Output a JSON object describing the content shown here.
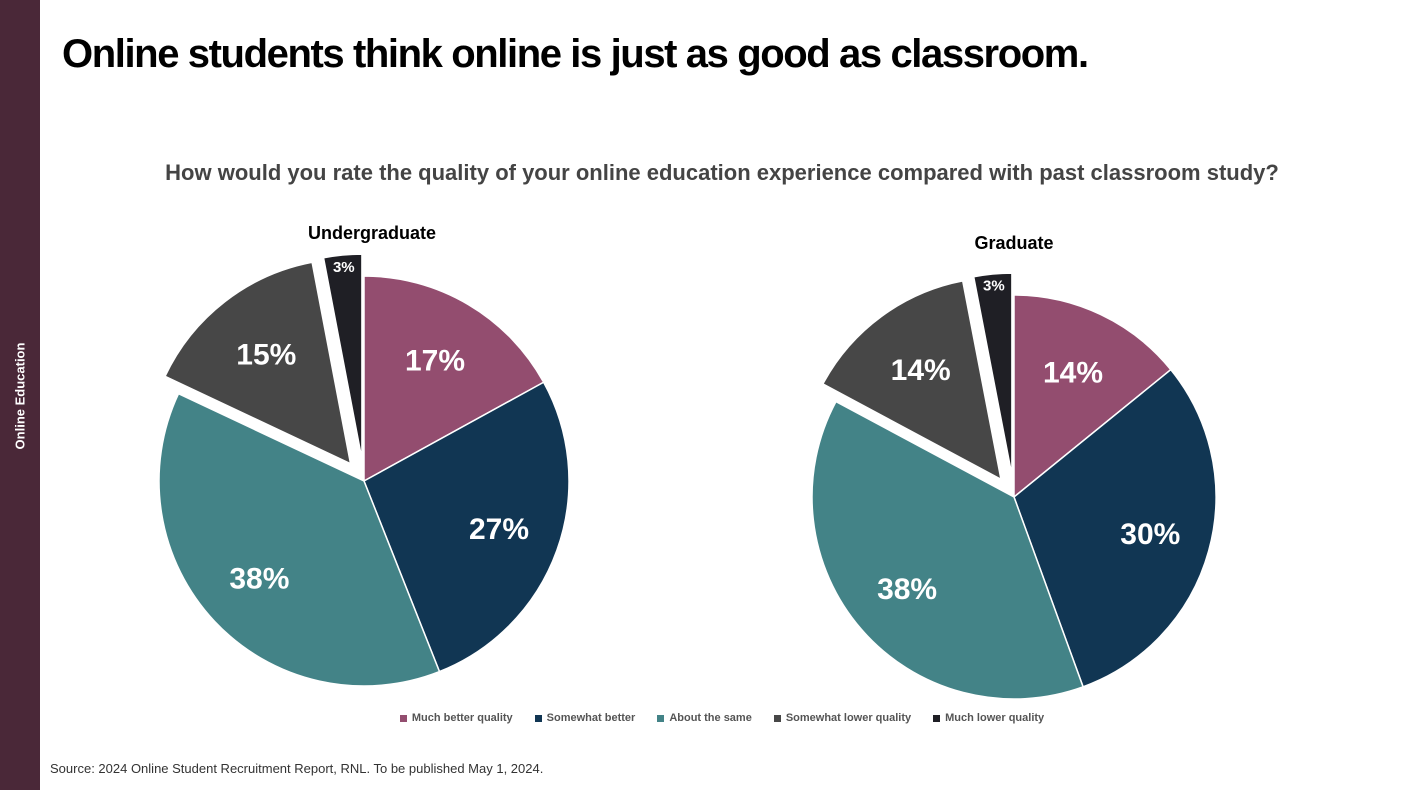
{
  "sidebar": {
    "label": "Online Education"
  },
  "slide": {
    "title": "Online students think online is just as good as classroom.",
    "question": "How would you rate the quality of your online education experience compared with past classroom study?",
    "source": "Source: 2024 Online Student Recruitment Report, RNL. To be published May 1, 2024."
  },
  "chart_data": [
    {
      "type": "pie",
      "title": "Undergraduate",
      "categories": [
        "Much better quality",
        "Somewhat better",
        "About the same",
        "Somewhat lower quality",
        "Much lower quality"
      ],
      "values": [
        17,
        27,
        38,
        15,
        3
      ],
      "labels": [
        "17%",
        "27%",
        "38%",
        "15%",
        "3%"
      ],
      "exploded": [
        "Somewhat lower quality",
        "Much lower quality"
      ],
      "legend": "bottom"
    },
    {
      "type": "pie",
      "title": "Graduate",
      "categories": [
        "Much better quality",
        "Somewhat better",
        "About the same",
        "Somewhat lower quality",
        "Much lower quality"
      ],
      "values": [
        14,
        30,
        38,
        14,
        3
      ],
      "labels": [
        "14%",
        "30%",
        "38%",
        "14%",
        "3%"
      ],
      "exploded": [
        "Somewhat lower quality",
        "Much lower quality"
      ],
      "legend": "bottom"
    }
  ],
  "legend": {
    "items": [
      {
        "label": "Much better quality",
        "color": "#934d6f"
      },
      {
        "label": "Somewhat better",
        "color": "#113653"
      },
      {
        "label": "About the same",
        "color": "#438387"
      },
      {
        "label": "Somewhat lower quality",
        "color": "#474747"
      },
      {
        "label": "Much lower quality",
        "color": "#1f1f25"
      }
    ]
  },
  "colors": {
    "sidebar": "#4a2838",
    "slices": [
      "#934d6f",
      "#113653",
      "#438387",
      "#474747",
      "#1f1f25"
    ]
  }
}
